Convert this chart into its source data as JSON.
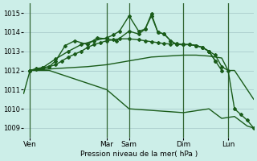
{
  "background_color": "#cceee8",
  "grid_color": "#aacccc",
  "line_color": "#1a5c1a",
  "ylim": [
    1008.5,
    1015.5
  ],
  "yticks": [
    1009,
    1010,
    1011,
    1012,
    1013,
    1014,
    1015
  ],
  "xlabel": "Pression niveau de la mer( hPa )",
  "day_labels": [
    "Ven",
    "Mar",
    "Sam",
    "Dim",
    "Lun"
  ],
  "day_positions": [
    2,
    26,
    33,
    50,
    64
  ],
  "xlim": [
    0,
    72
  ],
  "vline_positions": [
    2,
    26,
    33,
    50,
    64
  ],
  "vline_color": "#336633",
  "series": [
    {
      "x": [
        0,
        2,
        4,
        8,
        26,
        33,
        50,
        58,
        62,
        66,
        70,
        72
      ],
      "y": [
        1010.8,
        1012.0,
        1012.0,
        1012.0,
        1011.0,
        1010.0,
        1009.8,
        1010.0,
        1009.5,
        1009.6,
        1009.1,
        1009.0
      ],
      "lw": 1.0,
      "has_markers": false
    },
    {
      "x": [
        2,
        10,
        20,
        26,
        33,
        40,
        50,
        54,
        58,
        60,
        62,
        64,
        66,
        68,
        70,
        72
      ],
      "y": [
        1012.0,
        1012.1,
        1012.2,
        1012.3,
        1012.5,
        1012.7,
        1012.8,
        1012.8,
        1012.75,
        1012.7,
        1012.65,
        1012.0,
        1012.0,
        1011.5,
        1011.0,
        1010.5
      ],
      "lw": 1.0,
      "has_markers": false
    },
    {
      "x": [
        2,
        4,
        6,
        8,
        10,
        12,
        14,
        16,
        18,
        20,
        22,
        24,
        26,
        28,
        30,
        33,
        36,
        38,
        40,
        42,
        44,
        46,
        48,
        50,
        52,
        54,
        56,
        58,
        60,
        62,
        64,
        66,
        68,
        70,
        72
      ],
      "y": [
        1012.0,
        1012.1,
        1012.15,
        1012.2,
        1012.3,
        1012.5,
        1012.7,
        1012.85,
        1013.0,
        1013.2,
        1013.35,
        1013.45,
        1013.55,
        1013.6,
        1013.65,
        1013.65,
        1013.6,
        1013.55,
        1013.5,
        1013.45,
        1013.4,
        1013.38,
        1013.4,
        1013.35,
        1013.35,
        1013.3,
        1013.2,
        1013.0,
        1012.8,
        1012.2,
        1012.0,
        1010.0,
        1009.7,
        1009.4,
        1009.0
      ],
      "lw": 1.0,
      "has_markers": true
    },
    {
      "x": [
        2,
        4,
        6,
        8,
        10,
        13,
        16,
        20,
        23,
        26,
        29,
        33,
        36,
        38,
        40,
        42,
        44,
        46,
        48,
        50,
        52,
        54,
        56,
        58,
        60,
        62
      ],
      "y": [
        1012.0,
        1012.05,
        1012.1,
        1012.2,
        1012.5,
        1013.3,
        1013.55,
        1013.35,
        1013.7,
        1013.65,
        1013.55,
        1014.05,
        1013.9,
        1014.15,
        1014.85,
        1014.0,
        1013.9,
        1013.55,
        1013.35,
        1013.35,
        1013.35,
        1013.3,
        1013.2,
        1013.0,
        1012.5,
        1012.0
      ],
      "lw": 1.0,
      "has_markers": true
    },
    {
      "x": [
        2,
        6,
        10,
        14,
        18,
        22,
        26,
        28,
        30,
        33,
        36,
        38,
        40,
        42,
        44,
        46,
        48,
        50,
        52,
        54,
        56,
        58,
        60
      ],
      "y": [
        1012.0,
        1012.15,
        1012.6,
        1013.0,
        1013.35,
        1013.55,
        1013.7,
        1013.85,
        1014.05,
        1014.85,
        1014.05,
        1014.15,
        1014.95,
        1014.0,
        1013.9,
        1013.55,
        1013.35,
        1013.35,
        1013.35,
        1013.3,
        1013.2,
        1013.0,
        1012.5
      ],
      "lw": 1.0,
      "has_markers": true
    }
  ],
  "marker": "D",
  "marker_size": 2.0,
  "ytick_fontsize": 6.0,
  "xtick_fontsize": 6.5,
  "xlabel_fontsize": 6.5
}
